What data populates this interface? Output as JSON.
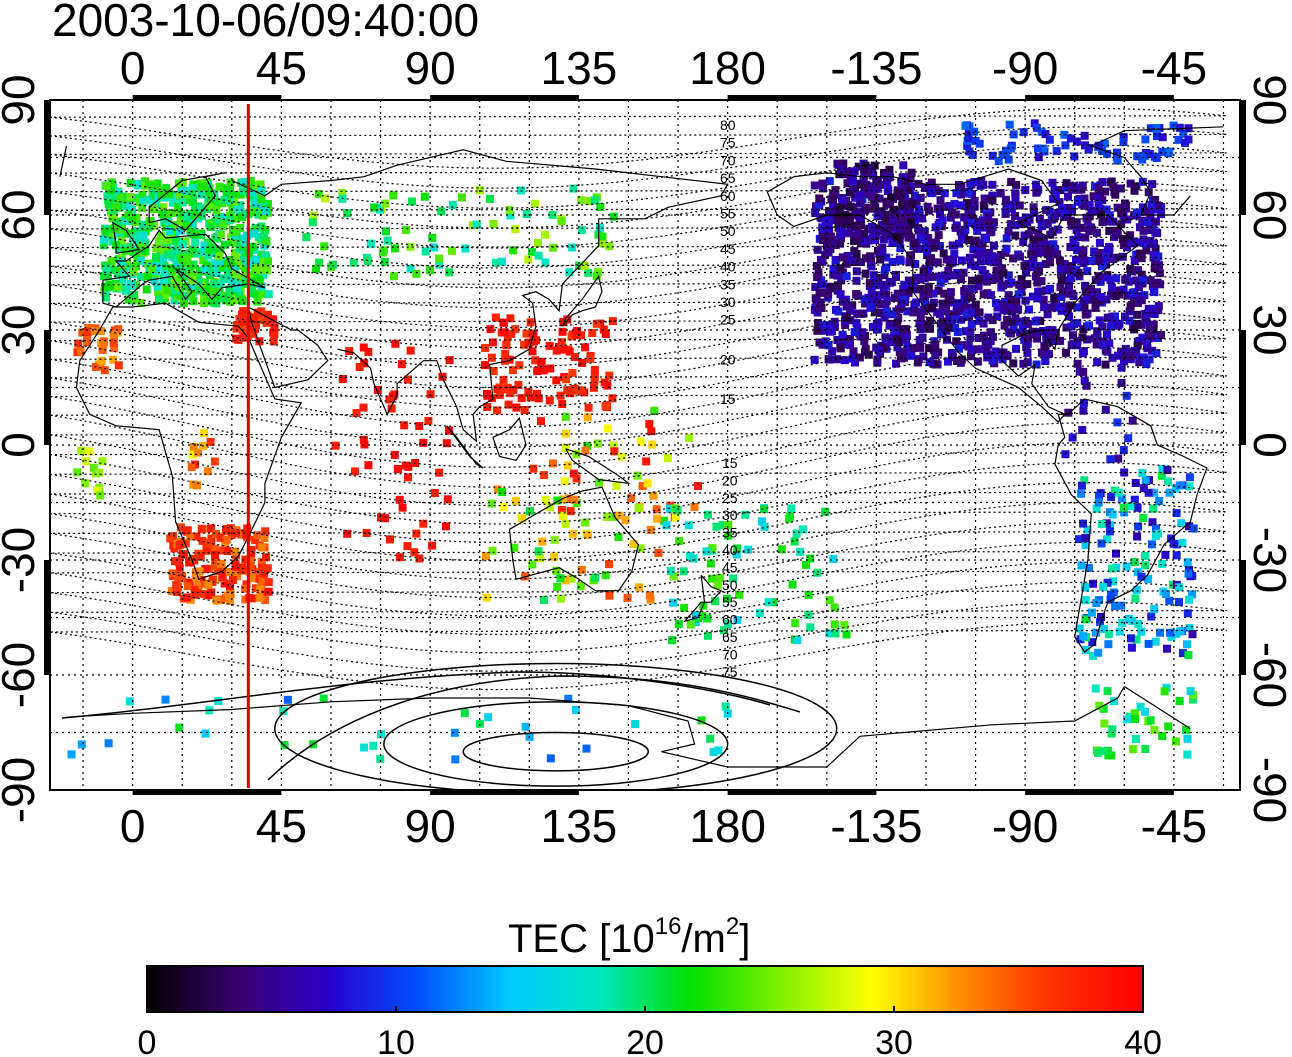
{
  "title": "2003-10-06/09:40:00",
  "axes": {
    "top_ticks": [
      "0",
      "45",
      "90",
      "135",
      "180",
      "-135",
      "-90",
      "-45"
    ],
    "bottom_ticks": [
      "0",
      "45",
      "90",
      "135",
      "180",
      "-135",
      "-90",
      "-45"
    ],
    "left_ticks": [
      "90",
      "60",
      "30",
      "0",
      "-30",
      "-60",
      "-90"
    ],
    "right_ticks": [
      "90",
      "60",
      "30",
      "0",
      "-30",
      "-60",
      "-90"
    ]
  },
  "contour_labels": {
    "north": [
      "80",
      "75",
      "70",
      "65",
      "60",
      "55",
      "50",
      "45",
      "40",
      "35",
      "30",
      "25",
      "20",
      "15"
    ],
    "south": [
      "15",
      "20",
      "25",
      "30",
      "35",
      "40",
      "45",
      "50",
      "55",
      "60",
      "65",
      "70",
      "75"
    ]
  },
  "colorbar": {
    "label_prefix": "TEC  [10",
    "label_exp1": "16",
    "label_mid": "/m",
    "label_exp2": "2",
    "label_suffix": "]",
    "ticks": [
      "0",
      "10",
      "20",
      "30",
      "40"
    ],
    "colors": [
      "#000000",
      "#3b006e",
      "#2a00c8",
      "#0050ff",
      "#00c8ff",
      "#00e8c0",
      "#00e000",
      "#80f000",
      "#ffff00",
      "#ff8c00",
      "#ff3000",
      "#ff0000"
    ]
  },
  "map": {
    "lon_start": -25,
    "lon_range": 360,
    "lat_range": [
      -90,
      90
    ],
    "terminator_lon": 35,
    "terminator_color": "#e00000"
  }
}
